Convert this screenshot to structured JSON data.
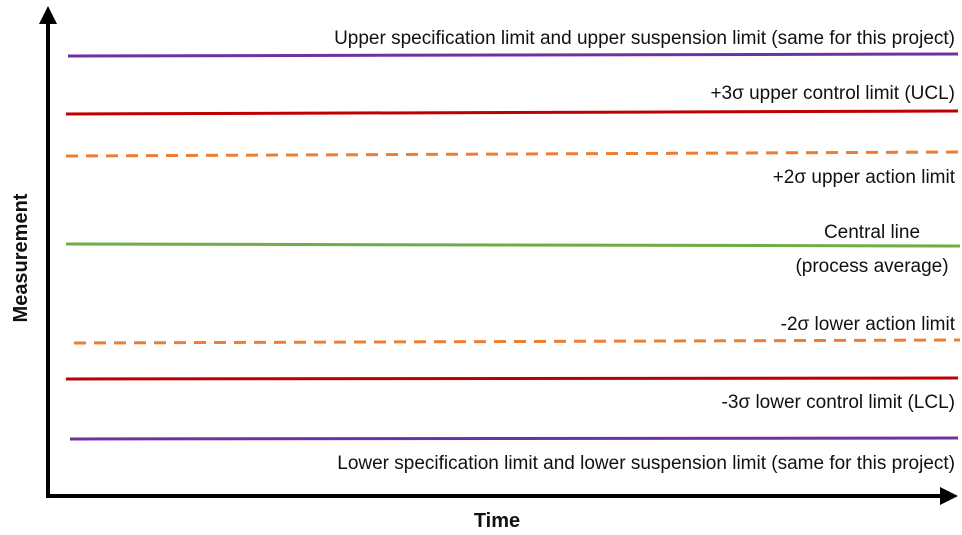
{
  "axes": {
    "x_label": "Time",
    "y_label": "Measurement"
  },
  "lines": [
    {
      "id": "upper-spec-limit",
      "style": "solid",
      "color": "#7030a0",
      "label": [
        "Upper specification limit and upper suspension limit (same for this project)"
      ]
    },
    {
      "id": "upper-control-limit",
      "style": "solid",
      "color": "#c00000",
      "label": [
        "+3σ upper control limit (UCL)"
      ]
    },
    {
      "id": "upper-action-limit",
      "style": "dashed",
      "color": "#ed7d31",
      "label": [
        "+2σ upper action limit"
      ]
    },
    {
      "id": "central-line",
      "style": "solid",
      "color": "#70ad47",
      "label": [
        "Central line",
        "(process average)"
      ]
    },
    {
      "id": "lower-action-limit",
      "style": "dashed",
      "color": "#ed7d31",
      "label": [
        "-2σ lower action limit"
      ]
    },
    {
      "id": "lower-control-limit",
      "style": "solid",
      "color": "#c00000",
      "label": [
        "-3σ lower control limit (LCL)"
      ]
    },
    {
      "id": "lower-spec-limit",
      "style": "solid",
      "color": "#7030a0",
      "label": [
        "Lower specification limit and lower suspension limit (same for this project)"
      ]
    }
  ]
}
